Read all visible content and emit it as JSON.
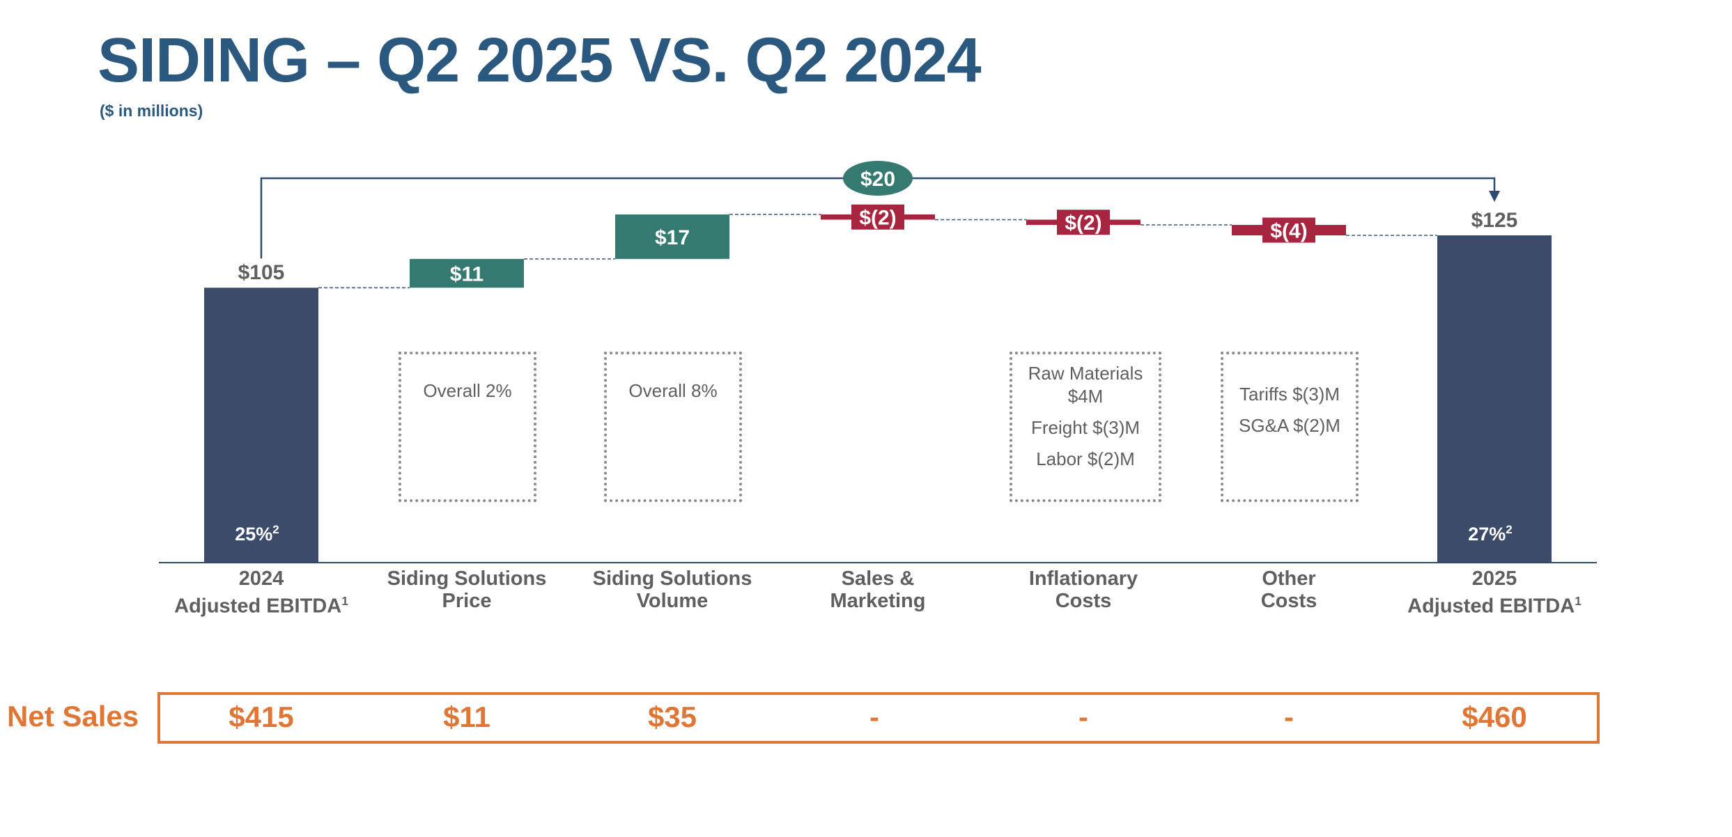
{
  "title": "SIDING – Q2 2025 VS. Q2 2024",
  "subtitle": "($ in millions)",
  "colors": {
    "title": "#2b587e",
    "total_bar": "#3b4b69",
    "positive": "#347a70",
    "negative": "#a8253f",
    "net_sales": "#e07636",
    "value_text": "#5f5f5f"
  },
  "bracket_label": "$20",
  "chart_data": {
    "type": "waterfall",
    "title": "SIDING – Q2 2025 VS. Q2 2024",
    "unit": "$ in millions",
    "ylim": [
      0,
      130
    ],
    "steps": [
      {
        "category_line1": "2024",
        "category_line2": "Adjusted EBITDA",
        "category_sup": "1",
        "kind": "total",
        "value": 105,
        "label": "$105",
        "margin": "25%",
        "margin_sup": "2"
      },
      {
        "category_line1": "Siding Solutions",
        "category_line2": "Price",
        "category_sup": "",
        "kind": "delta",
        "value": 11,
        "label": "$11"
      },
      {
        "category_line1": "Siding Solutions",
        "category_line2": "Volume",
        "category_sup": "",
        "kind": "delta",
        "value": 17,
        "label": "$17"
      },
      {
        "category_line1": "Sales &",
        "category_line2": "Marketing",
        "category_sup": "",
        "kind": "delta",
        "value": -2,
        "label": "$(2)"
      },
      {
        "category_line1": "Inflationary",
        "category_line2": "Costs",
        "category_sup": "",
        "kind": "delta",
        "value": -2,
        "label": "$(2)"
      },
      {
        "category_line1": "Other",
        "category_line2": "Costs",
        "category_sup": "",
        "kind": "delta",
        "value": -4,
        "label": "$(4)"
      },
      {
        "category_line1": "2025",
        "category_line2": "Adjusted EBITDA",
        "category_sup": "1",
        "kind": "total",
        "value": 125,
        "label": "$125",
        "margin": "27%",
        "margin_sup": "2"
      }
    ]
  },
  "notes": {
    "price": [
      "Overall 2%"
    ],
    "volume": [
      "Overall 8%"
    ],
    "inflationary": [
      "Raw Materials",
      "$4M",
      "Freight $(3)M",
      "Labor $(2)M"
    ],
    "other": [
      "Tariffs $(3)M",
      "SG&A $(2)M"
    ]
  },
  "net_sales": {
    "label": "Net Sales",
    "values": [
      "$415",
      "$11",
      "$35",
      "-",
      "-",
      "-",
      "$460"
    ]
  }
}
